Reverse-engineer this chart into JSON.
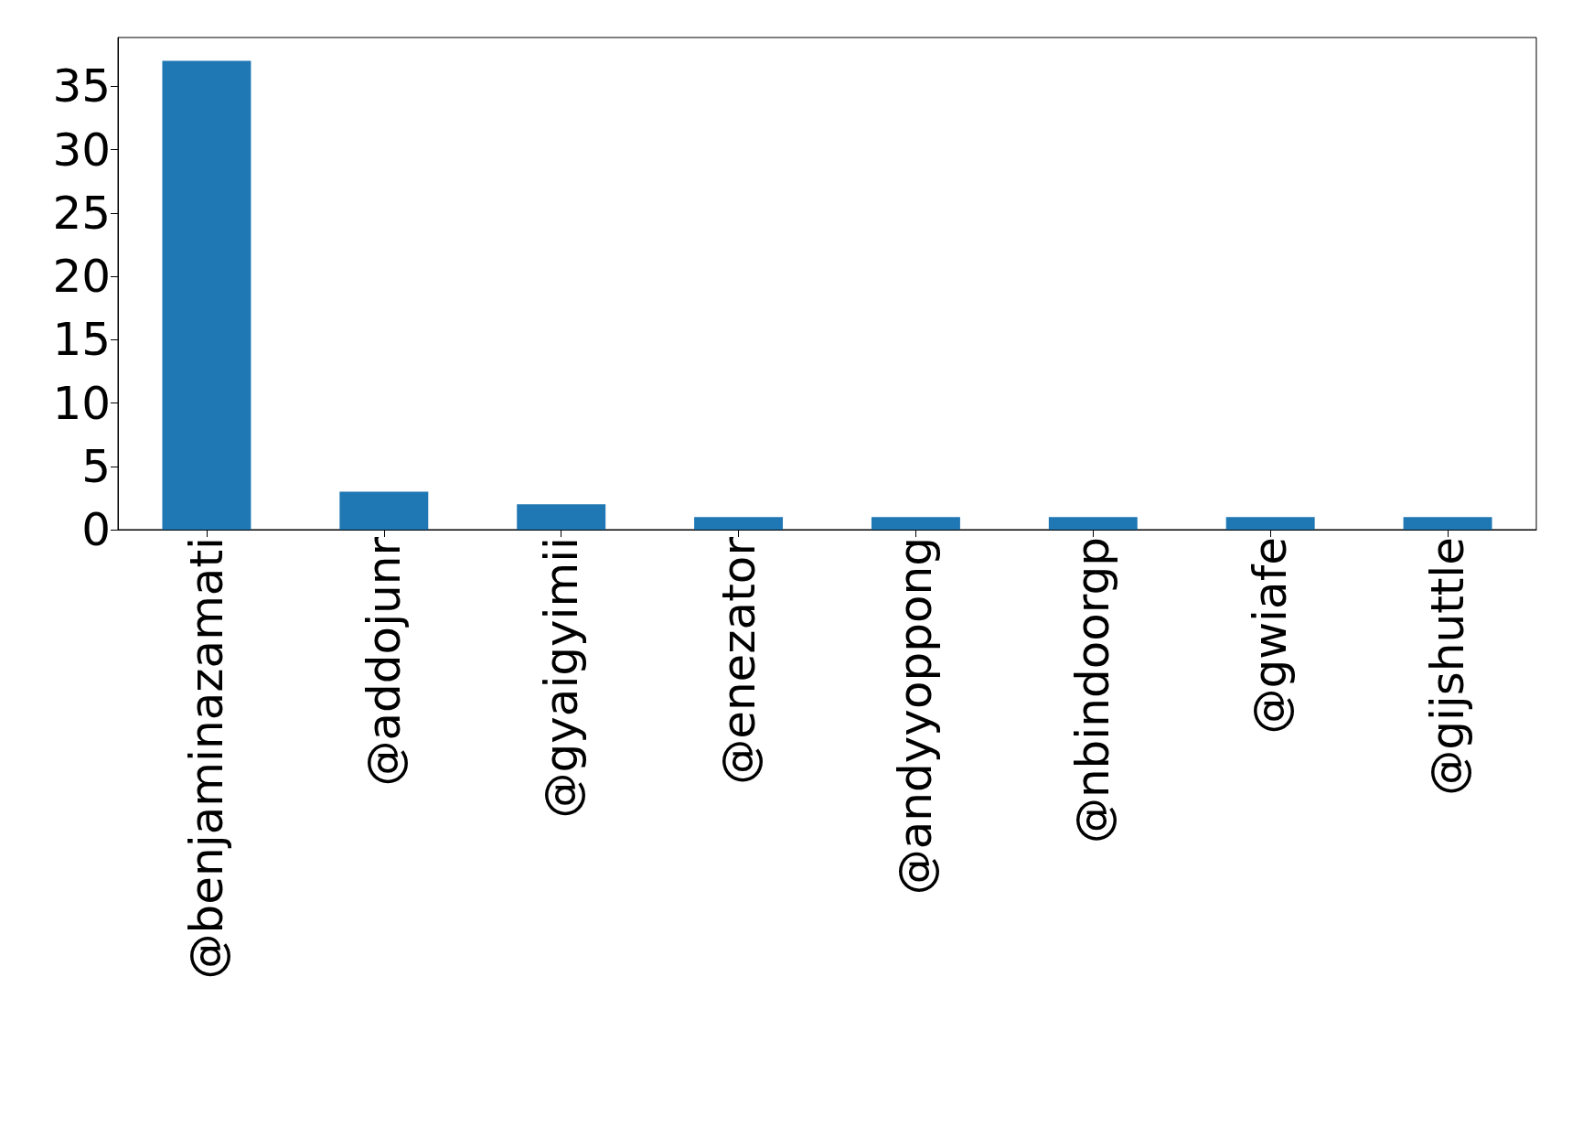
{
  "chart_data": {
    "type": "bar",
    "categories": [
      "@benjaminazamati",
      "@addojunr",
      "@gyaigyimii",
      "@enezator",
      "@andyyoppong",
      "@nbindoorgp",
      "@gwiafe",
      "@gijshuttle"
    ],
    "values": [
      37,
      3,
      2,
      1,
      1,
      1,
      1,
      1
    ],
    "color": "#1f77b4",
    "ylim": [
      0,
      38.85
    ],
    "yticks": [
      0,
      5,
      10,
      15,
      20,
      25,
      30,
      35
    ],
    "grid": false
  }
}
